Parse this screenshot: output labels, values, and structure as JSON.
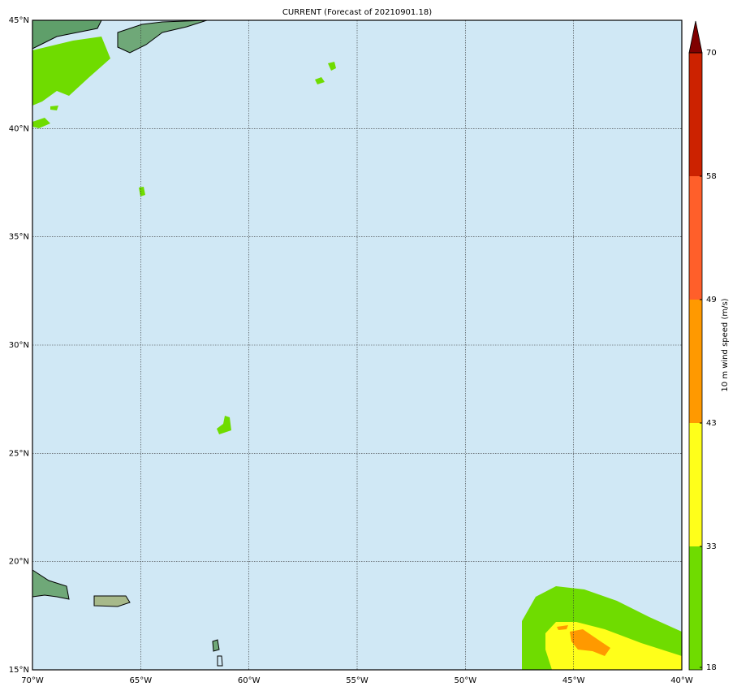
{
  "chart_data": {
    "type": "map",
    "title": "CURRENT (Forecast of 20210901.18)",
    "xlim": [
      -70,
      -40
    ],
    "ylim": [
      15,
      45
    ],
    "xticks": [
      {
        "value": -70,
        "label": "70°W"
      },
      {
        "value": -65,
        "label": "65°W"
      },
      {
        "value": -60,
        "label": "60°W"
      },
      {
        "value": -55,
        "label": "55°W"
      },
      {
        "value": -50,
        "label": "50°W"
      },
      {
        "value": -45,
        "label": "45°W"
      },
      {
        "value": -40,
        "label": "40°W"
      }
    ],
    "yticks": [
      {
        "value": 15,
        "label": "15°N"
      },
      {
        "value": 20,
        "label": "20°N"
      },
      {
        "value": 25,
        "label": "25°N"
      },
      {
        "value": 30,
        "label": "30°N"
      },
      {
        "value": 35,
        "label": "35°N"
      },
      {
        "value": 40,
        "label": "40°N"
      },
      {
        "value": 45,
        "label": "45°N"
      }
    ],
    "grid": true,
    "colorbar": {
      "label": "10 m wind speed (m/s)",
      "levels": [
        18,
        33,
        43,
        49,
        58,
        70
      ],
      "colors": [
        "#6fdc00",
        "#ffff1a",
        "#ff9900",
        "#ff5f2a",
        "#cc2200"
      ],
      "extend_color": "#800000"
    }
  }
}
